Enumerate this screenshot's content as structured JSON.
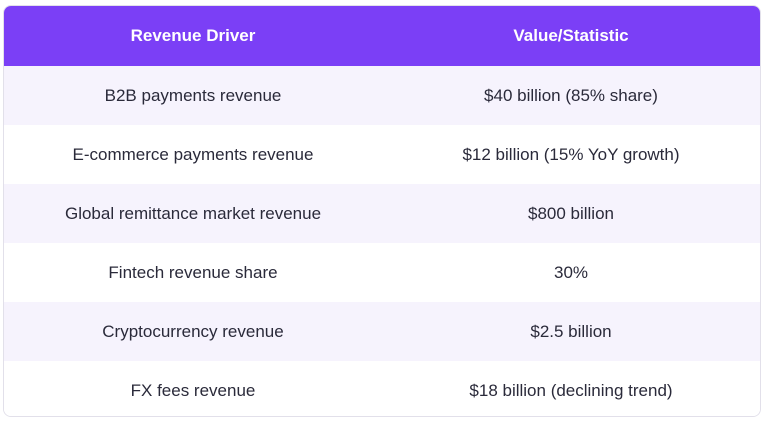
{
  "table": {
    "headers": [
      "Revenue Driver",
      "Value/Statistic"
    ],
    "rows": [
      [
        "B2B payments revenue",
        "$40 billion (85% share)"
      ],
      [
        "E-commerce payments revenue",
        "$12 billion (15% YoY growth)"
      ],
      [
        "Global remittance market revenue",
        "$800 billion"
      ],
      [
        "Fintech revenue share",
        "30%"
      ],
      [
        "Cryptocurrency revenue",
        "$2.5 billion"
      ],
      [
        "FX fees revenue",
        "$18 billion (declining trend)"
      ]
    ]
  },
  "colors": {
    "header_bg": "#7b3ff6",
    "header_text": "#ffffff",
    "row_alt_bg": "#f6f3fd",
    "row_bg": "#ffffff",
    "cell_text": "#2a2a3a"
  }
}
